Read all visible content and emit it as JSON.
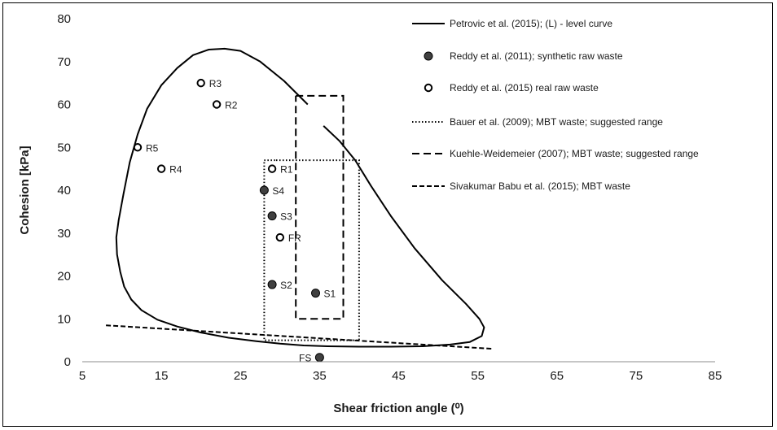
{
  "chart_data": {
    "type": "scatter",
    "xlabel": "Shear friction angle (⁰)",
    "ylabel": "Cohesion [kPa]",
    "xlim": [
      5,
      85
    ],
    "ylim": [
      0,
      80
    ],
    "x_ticks": [
      5,
      15,
      25,
      35,
      45,
      55,
      65,
      75,
      85
    ],
    "y_ticks": [
      0,
      10,
      20,
      30,
      40,
      50,
      60,
      70,
      80
    ],
    "grid": false,
    "legend_position": "right",
    "series": [
      {
        "name": "Petrovic et al. (2015); (L) - level curve",
        "kind": "curve",
        "style": "solid",
        "color": "#000000",
        "segments": [
          [
            [
              33.5,
              60
            ],
            [
              30.5,
              65.5
            ],
            [
              27.5,
              70
            ],
            [
              25,
              72.5
            ],
            [
              23,
              73
            ],
            [
              21,
              72.8
            ],
            [
              19,
              71.5
            ],
            [
              17,
              68.5
            ],
            [
              15,
              64.5
            ],
            [
              13.2,
              59
            ],
            [
              12,
              53
            ],
            [
              11,
              46.5
            ],
            [
              10.2,
              39
            ],
            [
              9.6,
              33
            ],
            [
              9.3,
              29
            ],
            [
              9.4,
              25
            ],
            [
              9.8,
              21
            ],
            [
              10.3,
              17.5
            ],
            [
              11.2,
              14.5
            ],
            [
              12.5,
              12
            ],
            [
              14.5,
              9.8
            ],
            [
              17,
              8.2
            ],
            [
              20,
              6.8
            ],
            [
              23.5,
              5.6
            ],
            [
              27,
              4.8
            ],
            [
              30,
              4.2
            ],
            [
              33,
              3.8
            ],
            [
              36,
              3.6
            ],
            [
              40,
              3.5
            ],
            [
              44,
              3.5
            ],
            [
              48,
              3.6
            ],
            [
              51.5,
              4
            ],
            [
              54,
              4.6
            ],
            [
              55.5,
              6
            ],
            [
              55.8,
              8
            ],
            [
              55.2,
              10
            ],
            [
              53.5,
              13.5
            ],
            [
              50.5,
              19
            ],
            [
              47,
              26.5
            ],
            [
              44,
              34
            ],
            [
              41.5,
              41
            ],
            [
              39.5,
              47
            ],
            [
              37.5,
              51.5
            ],
            [
              35.5,
              55
            ]
          ]
        ]
      },
      {
        "name": "Reddy et al. (2011); synthetic raw waste",
        "kind": "points",
        "marker": "filled-circle",
        "color": "#404040",
        "points": [
          {
            "label": "S1",
            "x": 34.5,
            "y": 16
          },
          {
            "label": "S2",
            "x": 29,
            "y": 18
          },
          {
            "label": "S3",
            "x": 29,
            "y": 34
          },
          {
            "label": "S4",
            "x": 28,
            "y": 40
          },
          {
            "label": "FS",
            "x": 35,
            "y": 1
          }
        ]
      },
      {
        "name": "Reddy et al. (2015) real raw waste",
        "kind": "points",
        "marker": "open-circle",
        "color": "#000000",
        "points": [
          {
            "label": "R1",
            "x": 29,
            "y": 45
          },
          {
            "label": "R2",
            "x": 22,
            "y": 60
          },
          {
            "label": "R3",
            "x": 20,
            "y": 65
          },
          {
            "label": "R4",
            "x": 15,
            "y": 45
          },
          {
            "label": "R5",
            "x": 12,
            "y": 50
          },
          {
            "label": "FR",
            "x": 30,
            "y": 29
          }
        ]
      },
      {
        "name": "Bauer et al. (2009); MBT waste; suggested range",
        "kind": "outline",
        "style": "dotted",
        "color": "#000000",
        "polygon": [
          [
            28,
            47
          ],
          [
            29.5,
            47
          ],
          [
            29.5,
            47
          ],
          [
            40,
            47
          ],
          [
            40,
            5
          ],
          [
            28,
            5
          ],
          [
            28,
            47
          ]
        ]
      },
      {
        "name": "Kuehle-Weidemeier (2007); MBT waste; suggested range",
        "kind": "outline",
        "style": "dashed",
        "color": "#000000",
        "polygon": [
          [
            32,
            62
          ],
          [
            38,
            62
          ],
          [
            38,
            10
          ],
          [
            32,
            10
          ],
          [
            32,
            62
          ]
        ]
      },
      {
        "name": "Sivakumar Babu et al. (2015); MBT waste",
        "kind": "curve",
        "style": "short-dashed",
        "color": "#000000",
        "segments": [
          [
            [
              8,
              8.5
            ],
            [
              57,
              3
            ]
          ]
        ]
      }
    ]
  }
}
